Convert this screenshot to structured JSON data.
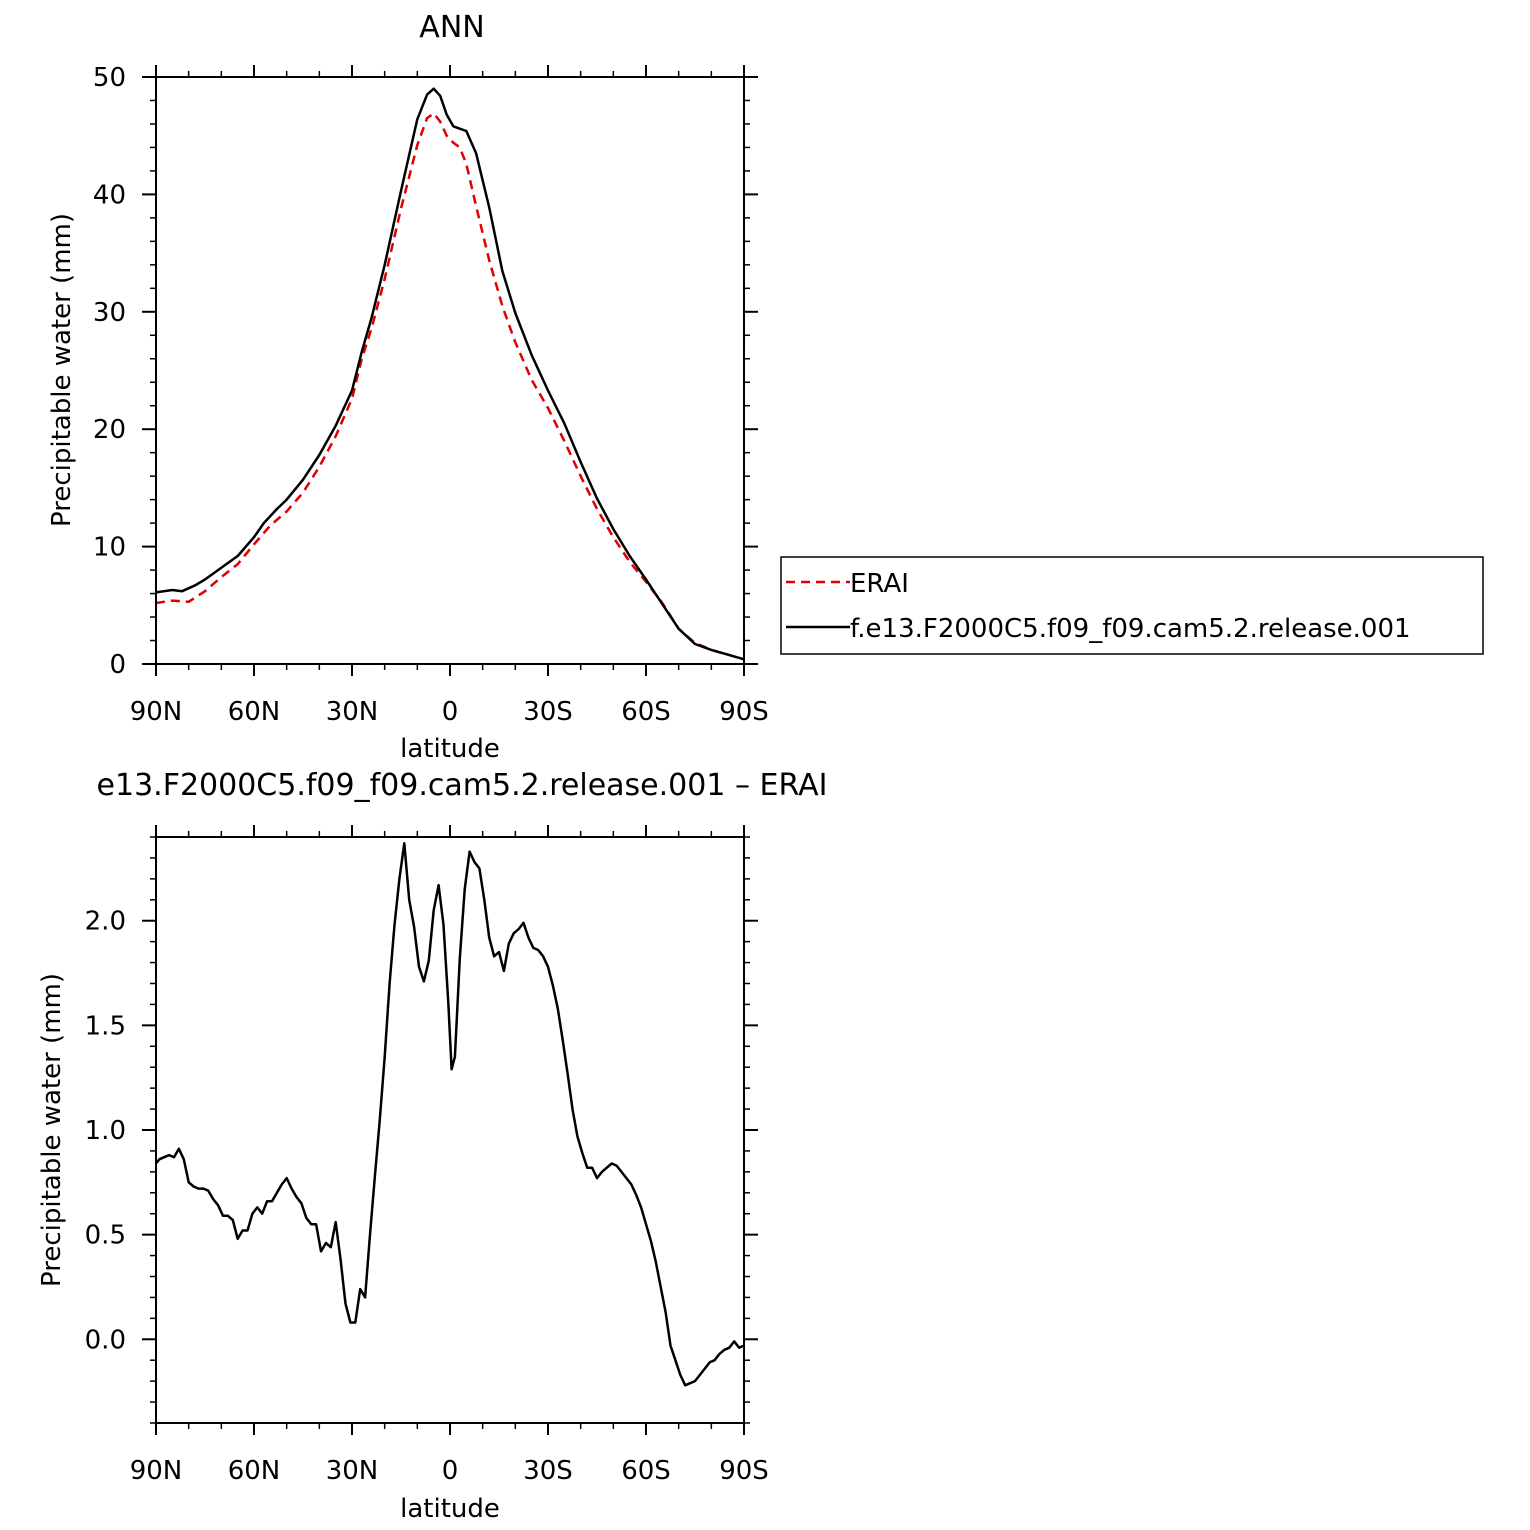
{
  "chart_data": [
    {
      "type": "line",
      "title": "ANN",
      "xlabel": "latitude",
      "ylabel": "Precipitable water (mm)",
      "xlim": [
        90,
        -90
      ],
      "ylim": [
        0,
        50
      ],
      "xticks": [
        {
          "value": 90,
          "label": "90N"
        },
        {
          "value": 60,
          "label": "60N"
        },
        {
          "value": 30,
          "label": "30N"
        },
        {
          "value": 0,
          "label": "0"
        },
        {
          "value": -30,
          "label": "30S"
        },
        {
          "value": -60,
          "label": "60S"
        },
        {
          "value": -90,
          "label": "90S"
        }
      ],
      "yticks": [
        {
          "value": 0,
          "label": "0"
        },
        {
          "value": 10,
          "label": "10"
        },
        {
          "value": 20,
          "label": "20"
        },
        {
          "value": 30,
          "label": "30"
        },
        {
          "value": 40,
          "label": "40"
        },
        {
          "value": 50,
          "label": "50"
        }
      ],
      "legend": "right",
      "series": [
        {
          "name": "ERAI",
          "color": "#e00000",
          "style": "dashed",
          "points": [
            [
              90,
              5.2
            ],
            [
              85,
              5.4
            ],
            [
              80,
              5.3
            ],
            [
              75,
              6.2
            ],
            [
              70,
              7.4
            ],
            [
              65,
              8.5
            ],
            [
              60,
              10.2
            ],
            [
              55,
              11.8
            ],
            [
              50,
              13.0
            ],
            [
              45,
              14.6
            ],
            [
              40,
              16.8
            ],
            [
              35,
              19.4
            ],
            [
              30,
              22.6
            ],
            [
              27,
              26.0
            ],
            [
              24,
              28.6
            ],
            [
              20,
              32.8
            ],
            [
              15,
              38.8
            ],
            [
              10,
              44.2
            ],
            [
              7,
              46.5
            ],
            [
              5,
              46.9
            ],
            [
              3,
              46.2
            ],
            [
              1,
              45.0
            ],
            [
              -1,
              44.4
            ],
            [
              -3,
              44.0
            ],
            [
              -5,
              42.6
            ],
            [
              -8,
              39.0
            ],
            [
              -12,
              34.4
            ],
            [
              -16,
              30.5
            ],
            [
              -20,
              27.4
            ],
            [
              -25,
              24.2
            ],
            [
              -30,
              21.8
            ],
            [
              -35,
              19.0
            ],
            [
              -40,
              16.0
            ],
            [
              -45,
              13.2
            ],
            [
              -50,
              10.8
            ],
            [
              -55,
              8.7
            ],
            [
              -60,
              7.0
            ],
            [
              -65,
              5.2
            ],
            [
              -70,
              3.0
            ],
            [
              -75,
              1.8
            ],
            [
              -80,
              1.2
            ],
            [
              -85,
              0.8
            ],
            [
              -90,
              0.4
            ]
          ]
        },
        {
          "name": "f.e13.F2000C5.f09_f09.cam5.2.release.001",
          "color": "#000000",
          "style": "solid",
          "points": [
            [
              90,
              6.1
            ],
            [
              85,
              6.3
            ],
            [
              82,
              6.2
            ],
            [
              78,
              6.7
            ],
            [
              75,
              7.2
            ],
            [
              70,
              8.2
            ],
            [
              65,
              9.2
            ],
            [
              60,
              10.8
            ],
            [
              57,
              12.0
            ],
            [
              53,
              13.2
            ],
            [
              50,
              14.0
            ],
            [
              45,
              15.7
            ],
            [
              40,
              17.8
            ],
            [
              35,
              20.3
            ],
            [
              30,
              23.3
            ],
            [
              27,
              26.6
            ],
            [
              24,
              29.5
            ],
            [
              20,
              34.0
            ],
            [
              15,
              40.3
            ],
            [
              10,
              46.4
            ],
            [
              7,
              48.5
            ],
            [
              5,
              49.0
            ],
            [
              3,
              48.4
            ],
            [
              1,
              46.8
            ],
            [
              -1,
              45.8
            ],
            [
              -3,
              45.6
            ],
            [
              -5,
              45.4
            ],
            [
              -8,
              43.5
            ],
            [
              -12,
              38.9
            ],
            [
              -16,
              33.5
            ],
            [
              -20,
              29.9
            ],
            [
              -25,
              26.3
            ],
            [
              -30,
              23.3
            ],
            [
              -35,
              20.5
            ],
            [
              -40,
              17.2
            ],
            [
              -45,
              14.1
            ],
            [
              -50,
              11.5
            ],
            [
              -55,
              9.2
            ],
            [
              -60,
              7.2
            ],
            [
              -65,
              5.1
            ],
            [
              -70,
              3.0
            ],
            [
              -75,
              1.7
            ],
            [
              -80,
              1.2
            ],
            [
              -85,
              0.8
            ],
            [
              -90,
              0.4
            ]
          ]
        }
      ]
    },
    {
      "type": "line",
      "title": "e13.F2000C5.f09_f09.cam5.2.release.001 - ERAI",
      "xlabel": "latitude",
      "ylabel": "Precipitable water (mm)",
      "xlim": [
        90,
        -90
      ],
      "ylim": [
        -0.4,
        2.4
      ],
      "xticks": [
        {
          "value": 90,
          "label": "90N"
        },
        {
          "value": 60,
          "label": "60N"
        },
        {
          "value": 30,
          "label": "30N"
        },
        {
          "value": 0,
          "label": "0"
        },
        {
          "value": -30,
          "label": "30S"
        },
        {
          "value": -60,
          "label": "60S"
        },
        {
          "value": -90,
          "label": "90S"
        }
      ],
      "yticks": [
        {
          "value": 0.0,
          "label": "0.0"
        },
        {
          "value": 0.5,
          "label": "0.5"
        },
        {
          "value": 1.0,
          "label": "1.0"
        },
        {
          "value": 1.5,
          "label": "1.5"
        },
        {
          "value": 2.0,
          "label": "2.0"
        }
      ],
      "series": [
        {
          "name": "",
          "color": "#000000",
          "style": "solid",
          "points": [
            [
              90,
              0.84
            ],
            [
              89,
              0.86
            ],
            [
              87.5,
              0.87
            ],
            [
              86,
              0.88
            ],
            [
              84.5,
              0.87
            ],
            [
              83,
              0.91
            ],
            [
              81.5,
              0.86
            ],
            [
              80,
              0.75
            ],
            [
              78.5,
              0.73
            ],
            [
              77,
              0.72
            ],
            [
              75.5,
              0.72
            ],
            [
              74,
              0.71
            ],
            [
              72.5,
              0.67
            ],
            [
              71,
              0.64
            ],
            [
              69.5,
              0.59
            ],
            [
              68,
              0.59
            ],
            [
              66.5,
              0.57
            ],
            [
              65,
              0.48
            ],
            [
              63.5,
              0.52
            ],
            [
              62,
              0.52
            ],
            [
              60.5,
              0.6
            ],
            [
              59,
              0.63
            ],
            [
              57.5,
              0.6
            ],
            [
              56,
              0.66
            ],
            [
              54.5,
              0.66
            ],
            [
              53,
              0.7
            ],
            [
              51.5,
              0.74
            ],
            [
              50,
              0.77
            ],
            [
              48.5,
              0.72
            ],
            [
              47,
              0.68
            ],
            [
              45.5,
              0.65
            ],
            [
              44,
              0.58
            ],
            [
              42.5,
              0.55
            ],
            [
              41,
              0.55
            ],
            [
              39.5,
              0.42
            ],
            [
              38,
              0.46
            ],
            [
              36.5,
              0.44
            ],
            [
              35,
              0.56
            ],
            [
              33.5,
              0.38
            ],
            [
              32,
              0.17
            ],
            [
              30.5,
              0.08
            ],
            [
              29,
              0.08
            ],
            [
              27.5,
              0.24
            ],
            [
              26,
              0.2
            ],
            [
              24.5,
              0.5
            ],
            [
              23,
              0.78
            ],
            [
              21.5,
              1.05
            ],
            [
              20,
              1.35
            ],
            [
              18.5,
              1.7
            ],
            [
              17,
              1.98
            ],
            [
              15.5,
              2.2
            ],
            [
              14,
              2.37
            ],
            [
              12.5,
              2.1
            ],
            [
              11,
              1.97
            ],
            [
              9.5,
              1.78
            ],
            [
              8,
              1.71
            ],
            [
              6.5,
              1.81
            ],
            [
              5,
              2.05
            ],
            [
              3.5,
              2.17
            ],
            [
              2,
              1.98
            ],
            [
              0.5,
              1.6
            ],
            [
              -0.5,
              1.29
            ],
            [
              -1.5,
              1.35
            ],
            [
              -3,
              1.82
            ],
            [
              -4.5,
              2.15
            ],
            [
              -6,
              2.33
            ],
            [
              -7.5,
              2.28
            ],
            [
              -9,
              2.25
            ],
            [
              -10.5,
              2.1
            ],
            [
              -12,
              1.92
            ],
            [
              -13.5,
              1.83
            ],
            [
              -15,
              1.85
            ],
            [
              -16.5,
              1.76
            ],
            [
              -18,
              1.89
            ],
            [
              -19.5,
              1.94
            ],
            [
              -21,
              1.96
            ],
            [
              -22.5,
              1.99
            ],
            [
              -24,
              1.92
            ],
            [
              -25.5,
              1.87
            ],
            [
              -27,
              1.86
            ],
            [
              -28.5,
              1.83
            ],
            [
              -30,
              1.78
            ],
            [
              -31.5,
              1.69
            ],
            [
              -33,
              1.58
            ],
            [
              -34.5,
              1.43
            ],
            [
              -36,
              1.27
            ],
            [
              -37.5,
              1.1
            ],
            [
              -39,
              0.97
            ],
            [
              -40.5,
              0.89
            ],
            [
              -42,
              0.82
            ],
            [
              -43.5,
              0.82
            ],
            [
              -45,
              0.77
            ],
            [
              -46.5,
              0.8
            ],
            [
              -48,
              0.82
            ],
            [
              -49.5,
              0.84
            ],
            [
              -51,
              0.83
            ],
            [
              -52.5,
              0.8
            ],
            [
              -54,
              0.77
            ],
            [
              -55.5,
              0.74
            ],
            [
              -57,
              0.69
            ],
            [
              -58.5,
              0.63
            ],
            [
              -60,
              0.55
            ],
            [
              -61.5,
              0.47
            ],
            [
              -63,
              0.37
            ],
            [
              -64.5,
              0.25
            ],
            [
              -66,
              0.13
            ],
            [
              -67.5,
              -0.03
            ],
            [
              -69,
              -0.1
            ],
            [
              -70.5,
              -0.17
            ],
            [
              -72,
              -0.22
            ],
            [
              -73.5,
              -0.21
            ],
            [
              -75,
              -0.2
            ],
            [
              -76.5,
              -0.17
            ],
            [
              -78,
              -0.14
            ],
            [
              -79.5,
              -0.11
            ],
            [
              -81,
              -0.1
            ],
            [
              -82.5,
              -0.07
            ],
            [
              -84,
              -0.05
            ],
            [
              -85.5,
              -0.04
            ],
            [
              -87,
              -0.01
            ],
            [
              -88.5,
              -0.04
            ],
            [
              -90,
              -0.03
            ]
          ]
        }
      ]
    }
  ]
}
